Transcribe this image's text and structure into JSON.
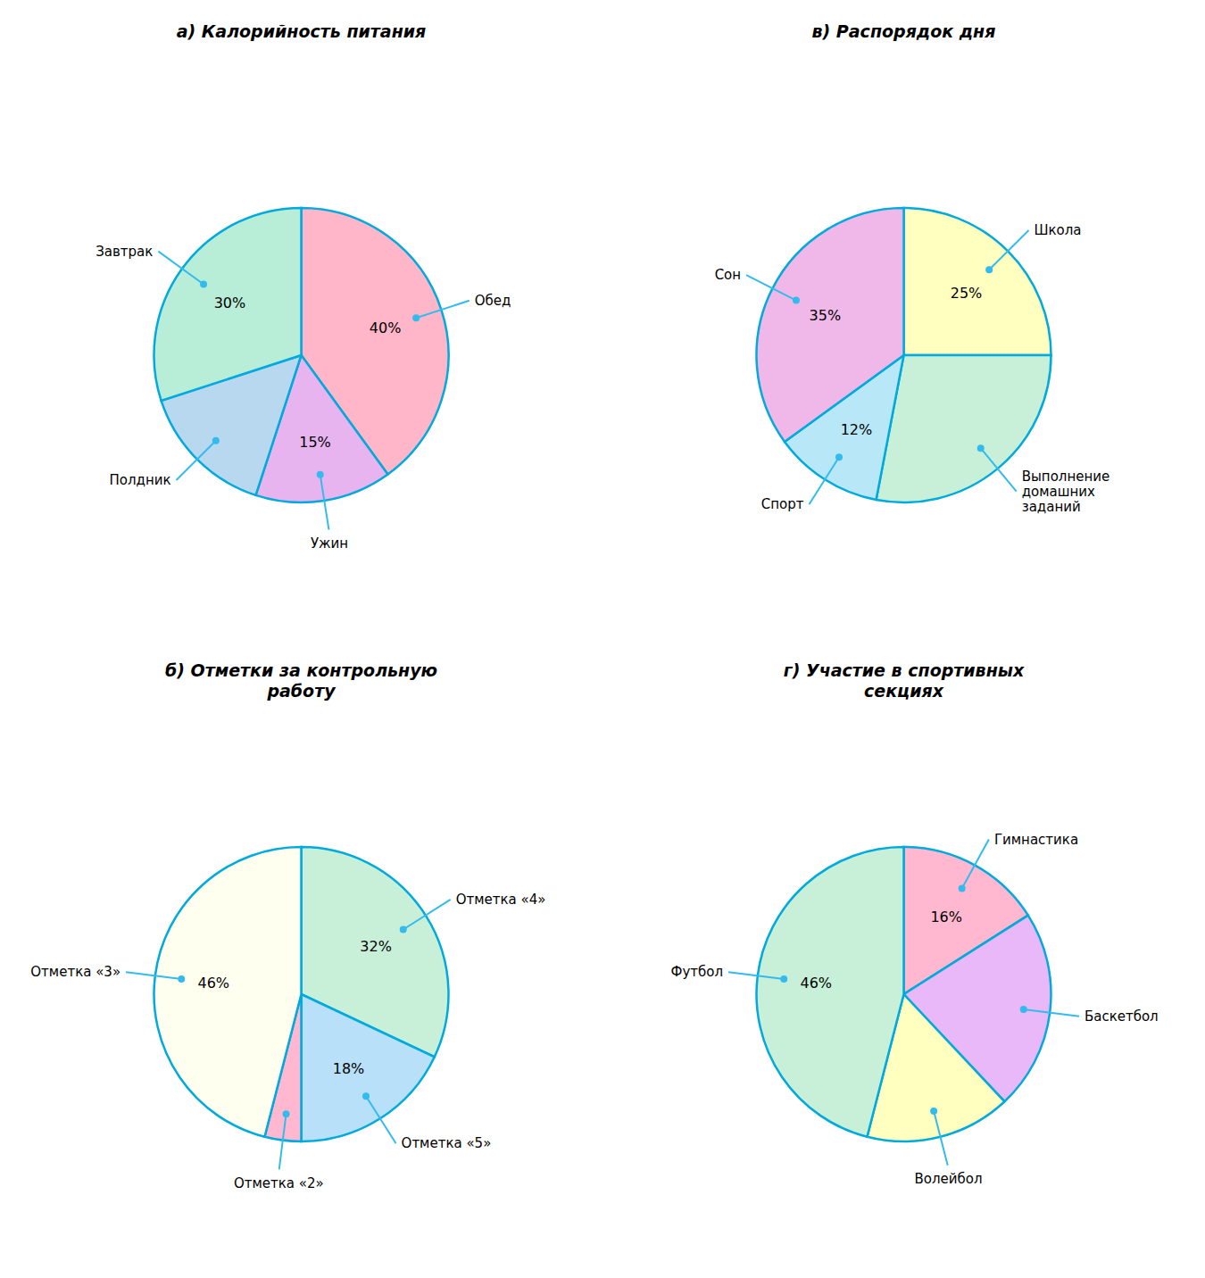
{
  "chart_data": [
    {
      "type": "pie",
      "title": "а) Калорийность питания",
      "categories": [
        "Обед",
        "Ужин",
        "Полдник",
        "Завтрак"
      ],
      "values": [
        40,
        15,
        15,
        30
      ],
      "value_labels": [
        "40%",
        "15%",
        null,
        "30%"
      ],
      "colors": [
        "#FFB6C8",
        "#E8B4F0",
        "#B8D8F0",
        "#B8EDD8"
      ],
      "data_labels": true
    },
    {
      "type": "pie",
      "title": "в) Распорядок дня",
      "categories": [
        "Школа",
        "Выполнение\nдомашних\nзаданий",
        "Спорт",
        "Сон"
      ],
      "values": [
        25,
        28,
        12,
        35
      ],
      "value_labels": [
        "25%",
        null,
        "12%",
        "35%"
      ],
      "colors": [
        "#FFFFC0",
        "#C8F0D8",
        "#B8E8F8",
        "#F0B8E8"
      ],
      "data_labels": true
    },
    {
      "type": "pie",
      "title": "б) Отметки за контрольную\nработу",
      "categories": [
        "Отметка «4»",
        "Отметка «5»",
        "Отметка «2»",
        "Отметка «3»"
      ],
      "values": [
        32,
        18,
        4,
        46
      ],
      "value_labels": [
        "32%",
        "18%",
        null,
        "46%"
      ],
      "colors": [
        "#C8F0D8",
        "#B8E0F8",
        "#FFB8D0",
        "#FFFFF0"
      ],
      "data_labels": true
    },
    {
      "type": "pie",
      "title": "г) Участие в спортивных\nсекциях",
      "categories": [
        "Гимнастика",
        "Баскетбол",
        "Волейбол",
        "Футбол"
      ],
      "values": [
        16,
        22,
        16,
        46
      ],
      "value_labels": [
        "16%",
        null,
        null,
        "46%"
      ],
      "colors": [
        "#FFB8D0",
        "#E8B8F8",
        "#FFFFC0",
        "#C8F0D8"
      ],
      "data_labels": true
    }
  ]
}
